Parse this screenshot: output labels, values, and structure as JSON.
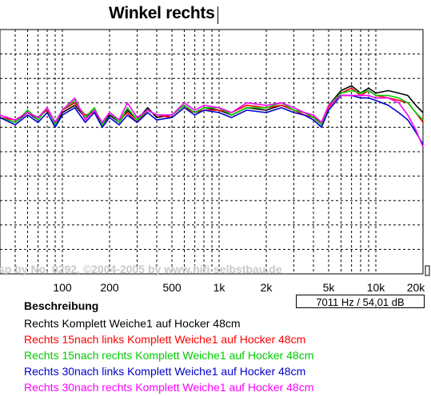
{
  "title": "Winkel rechts",
  "watermark": "sp by No. 0292, ©2004-2005 by www.hifi-selbstbau.de",
  "readout": "7011 Hz / 54,01 dB",
  "legend_title": "Beschreibung",
  "chart_data": {
    "type": "line",
    "title": "Winkel rechts",
    "x_scale": "log",
    "xlim": [
      40,
      20000
    ],
    "ylim": [
      20,
      120
    ],
    "grid": true,
    "legend_position": "bottom",
    "x_ticks": [
      {
        "value": 100,
        "label": "100"
      },
      {
        "value": 200,
        "label": "200"
      },
      {
        "value": 500,
        "label": "500"
      },
      {
        "value": 1000,
        "label": "1k"
      },
      {
        "value": 2000,
        "label": "2k"
      },
      {
        "value": 5000,
        "label": "5k"
      },
      {
        "value": 10000,
        "label": "10k"
      },
      {
        "value": 20000,
        "label": "20k"
      }
    ],
    "x_minor_grid": [
      50,
      60,
      70,
      80,
      90,
      300,
      400,
      600,
      700,
      800,
      900,
      3000,
      4000,
      6000,
      7000,
      8000,
      9000
    ],
    "y_grid": [
      110,
      100,
      90,
      80,
      70,
      60,
      50,
      40,
      30,
      20
    ],
    "x": [
      40,
      50,
      60,
      70,
      80,
      90,
      100,
      120,
      140,
      160,
      180,
      200,
      230,
      260,
      300,
      350,
      400,
      500,
      600,
      700,
      800,
      1000,
      1200,
      1500,
      2000,
      2500,
      3000,
      3500,
      4000,
      4500,
      5000,
      6000,
      7000,
      8000,
      9000,
      10000,
      12000,
      14000,
      16000,
      18000,
      20000
    ],
    "series": [
      {
        "name": "Rechts Komplett Weiche1 auf Hocker 48cm",
        "color": "#000000",
        "values": [
          84,
          82,
          86,
          83,
          88,
          81,
          86,
          89,
          84,
          87,
          81,
          85,
          82,
          87,
          83,
          88,
          84,
          85,
          89,
          86,
          88,
          87,
          85,
          88,
          87,
          89,
          87,
          86,
          84,
          81,
          89,
          95,
          97,
          94,
          96,
          94,
          95,
          94,
          93,
          89,
          86
        ]
      },
      {
        "name": "Rechts 15nach links Komplett Weiche1 auf Hocker 48cm",
        "color": "#ff0000",
        "values": [
          84,
          83,
          86,
          84,
          87,
          82,
          87,
          90,
          85,
          86,
          82,
          86,
          83,
          86,
          82,
          87,
          85,
          84,
          88,
          86,
          87,
          87,
          86,
          89,
          88,
          89,
          87,
          85,
          84,
          82,
          88,
          94,
          96,
          93,
          95,
          93,
          92,
          91,
          90,
          86,
          82
        ]
      },
      {
        "name": "Rechts 15nach rechts Komplett Weiche1 auf Hocker 48cm",
        "color": "#00cc00",
        "values": [
          84,
          82,
          87,
          83,
          88,
          81,
          87,
          91,
          84,
          88,
          81,
          86,
          82,
          88,
          83,
          87,
          85,
          85,
          89,
          86,
          88,
          88,
          85,
          88,
          88,
          90,
          87,
          86,
          84,
          81,
          89,
          94,
          95,
          94,
          95,
          93,
          93,
          92,
          90,
          86,
          83
        ]
      },
      {
        "name": "Rechts 30nach links Komplett Weiche1 auf Hocker 48cm",
        "color": "#0000cc",
        "values": [
          84,
          81,
          85,
          82,
          86,
          80,
          85,
          88,
          82,
          86,
          80,
          84,
          81,
          85,
          82,
          86,
          83,
          84,
          88,
          85,
          87,
          86,
          84,
          87,
          86,
          88,
          86,
          85,
          83,
          80,
          87,
          93,
          93,
          92,
          92,
          91,
          89,
          86,
          83,
          78,
          73
        ]
      },
      {
        "name": "Rechts 30nach rechts Komplett Weiche1 auf Hocker 48cm",
        "color": "#ff00ff",
        "values": [
          85,
          83,
          86,
          84,
          88,
          82,
          87,
          92,
          83,
          87,
          82,
          86,
          83,
          90,
          84,
          87,
          85,
          85,
          90,
          87,
          89,
          88,
          86,
          90,
          89,
          90,
          88,
          86,
          85,
          82,
          89,
          93,
          93,
          93,
          93,
          92,
          92,
          90,
          85,
          79,
          72
        ]
      }
    ]
  }
}
